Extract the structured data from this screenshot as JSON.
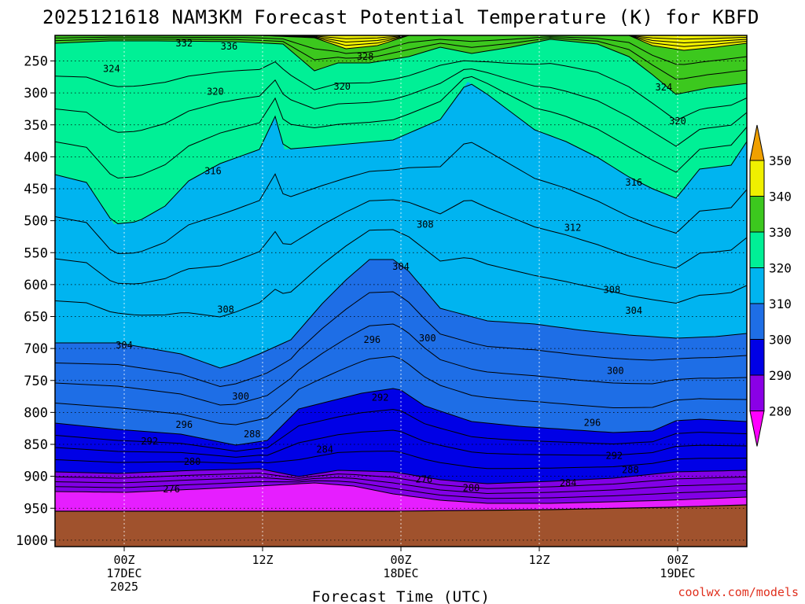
{
  "chart_data": {
    "type": "contour",
    "title": "2025121618 NAM3KM Forecast Potential Temperature (K) for KBFD",
    "xlabel": "Forecast Time (UTC)",
    "ylabel": "",
    "x_unit": "forecast hours",
    "x_range": [
      -6,
      54
    ],
    "y_unit": "hPa",
    "y_range": [
      210,
      1010
    ],
    "y_ticks": [
      "250",
      "300",
      "350",
      "400",
      "450",
      "500",
      "550",
      "600",
      "650",
      "700",
      "750",
      "800",
      "850",
      "900",
      "950",
      "1000"
    ],
    "x_ticks": [
      {
        "hour": 0,
        "line1": "00Z",
        "line2": "17DEC",
        "line3": "2025"
      },
      {
        "hour": 12,
        "line1": "12Z",
        "line2": "",
        "line3": ""
      },
      {
        "hour": 24,
        "line1": "00Z",
        "line2": "18DEC",
        "line3": ""
      },
      {
        "hour": 36,
        "line1": "12Z",
        "line2": "",
        "line3": ""
      },
      {
        "hour": 48,
        "line1": "00Z",
        "line2": "19DEC",
        "line3": ""
      }
    ],
    "colorbar": {
      "labels": [
        "280",
        "290",
        "300",
        "310",
        "320",
        "330",
        "340",
        "350"
      ],
      "colors": [
        "#ff00ff",
        "#8a00e6",
        "#0000e6",
        "#1e6ee6",
        "#00b4f0",
        "#00f096",
        "#3cc81e",
        "#f0f000",
        "#f0a000"
      ]
    },
    "fill_colors": {
      "ground": "#a0522d",
      "magenta": "#e61eff",
      "purple": "#8200e6",
      "blue": "#0000e6",
      "mid_blue": "#1e6ee6",
      "light_blue": "#00b4f0",
      "aqua_green": "#00f096",
      "green": "#3cc81e",
      "yellow": "#f0f000"
    },
    "contour_labels": [
      {
        "text": "332",
        "hour": 5.2,
        "hpa": 222
      },
      {
        "text": "336",
        "hour": 9.1,
        "hpa": 227
      },
      {
        "text": "328",
        "hour": 20.9,
        "hpa": 243
      },
      {
        "text": "324",
        "hour": -1.1,
        "hpa": 262
      },
      {
        "text": "324",
        "hour": 46.8,
        "hpa": 291
      },
      {
        "text": "320",
        "hour": 7.9,
        "hpa": 298
      },
      {
        "text": "320",
        "hour": 18.9,
        "hpa": 290
      },
      {
        "text": "320",
        "hour": 48.0,
        "hpa": 344
      },
      {
        "text": "316",
        "hour": 7.7,
        "hpa": 422
      },
      {
        "text": "316",
        "hour": 44.2,
        "hpa": 440
      },
      {
        "text": "312",
        "hour": 38.9,
        "hpa": 511
      },
      {
        "text": "308",
        "hour": 26.1,
        "hpa": 506
      },
      {
        "text": "308",
        "hour": 8.8,
        "hpa": 639
      },
      {
        "text": "308",
        "hour": 42.3,
        "hpa": 608
      },
      {
        "text": "304",
        "hour": 0.0,
        "hpa": 695
      },
      {
        "text": "304",
        "hour": 24.0,
        "hpa": 572
      },
      {
        "text": "304",
        "hour": 44.2,
        "hpa": 641
      },
      {
        "text": "300",
        "hour": 26.3,
        "hpa": 684
      },
      {
        "text": "300",
        "hour": 42.6,
        "hpa": 735
      },
      {
        "text": "300",
        "hour": 10.1,
        "hpa": 775
      },
      {
        "text": "296",
        "hour": 21.5,
        "hpa": 686
      },
      {
        "text": "296",
        "hour": 5.2,
        "hpa": 819
      },
      {
        "text": "296",
        "hour": 40.6,
        "hpa": 816
      },
      {
        "text": "292",
        "hour": 22.2,
        "hpa": 777
      },
      {
        "text": "292",
        "hour": 2.2,
        "hpa": 845
      },
      {
        "text": "292",
        "hour": 42.5,
        "hpa": 868
      },
      {
        "text": "288",
        "hour": 11.1,
        "hpa": 834
      },
      {
        "text": "288",
        "hour": 43.9,
        "hpa": 890
      },
      {
        "text": "284",
        "hour": 17.4,
        "hpa": 858
      },
      {
        "text": "284",
        "hour": 38.5,
        "hpa": 910
      },
      {
        "text": "280",
        "hour": 5.9,
        "hpa": 877
      },
      {
        "text": "280",
        "hour": 30.1,
        "hpa": 918
      },
      {
        "text": "276",
        "hour": 4.1,
        "hpa": 920
      },
      {
        "text": "276",
        "hour": 26.0,
        "hpa": 905
      }
    ]
  },
  "credit": "coolwx.com/models"
}
